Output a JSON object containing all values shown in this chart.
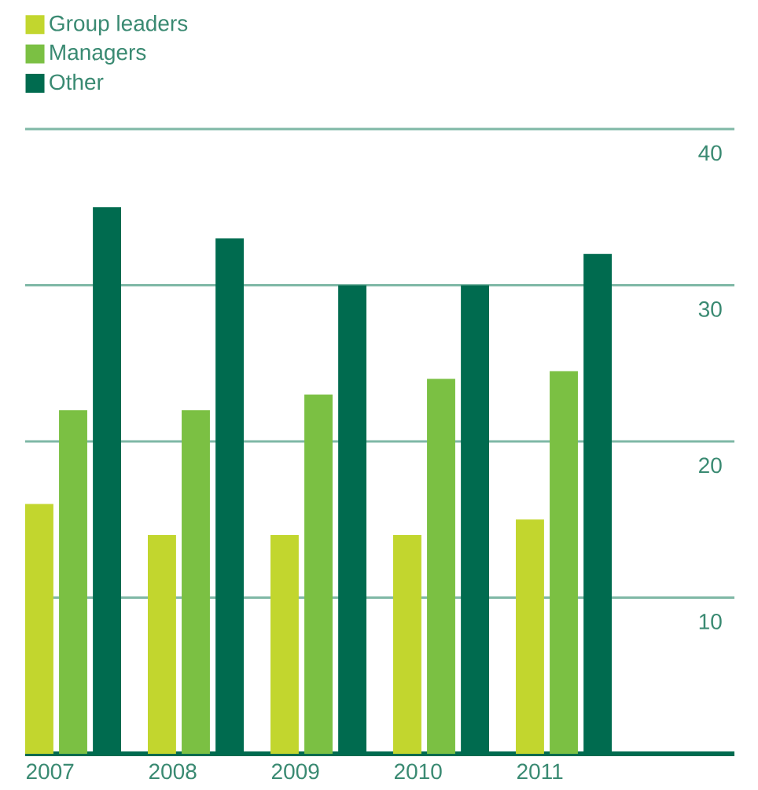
{
  "chart_data": {
    "type": "bar",
    "categories": [
      "2007",
      "2008",
      "2009",
      "2010",
      "2011"
    ],
    "series": [
      {
        "name": "Group leaders",
        "color": "#c2d62e",
        "values": [
          16,
          14,
          14,
          14,
          15
        ]
      },
      {
        "name": "Managers",
        "color": "#7bc043",
        "values": [
          22,
          22,
          23,
          24,
          24.5
        ]
      },
      {
        "name": "Other",
        "color": "#006b4f",
        "values": [
          35,
          33,
          30,
          30,
          32
        ]
      }
    ],
    "ylim": [
      0,
      40
    ],
    "yticks": [
      10,
      20,
      30,
      40
    ],
    "grid": "y",
    "legend": "top left"
  }
}
